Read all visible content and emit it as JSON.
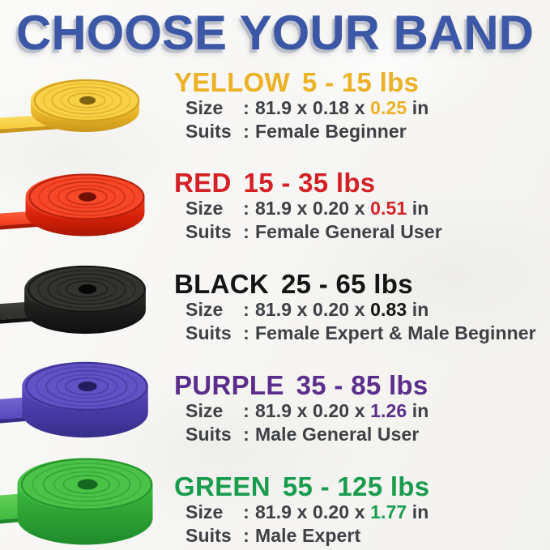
{
  "page": {
    "title": "CHOOSE YOUR BAND",
    "title_color": "#3B57A6",
    "background": "#F5F4F1",
    "text_color": "#3E4145"
  },
  "labels": {
    "size": "Size",
    "suits": "Suits",
    "colon": ":",
    "unit": "in"
  },
  "bands": [
    {
      "name": "YELLOW",
      "range": "5 - 15 lbs",
      "heading_color": "#ECB125",
      "size_prefix": "81.9 x 0.18 x",
      "thickness": "0.25",
      "thickness_color": "#ECB125",
      "suits": "Female Beginner",
      "photo_colors": {
        "light": "#FBDE6B",
        "main": "#F6CC37",
        "shade": "#E2AE25",
        "deep": "#C9961C",
        "hole": "#7E6410"
      }
    },
    {
      "name": "RED",
      "range": "15 - 35 lbs",
      "heading_color": "#D42127",
      "size_prefix": "81.9 x 0.20 x",
      "thickness": "0.51",
      "thickness_color": "#D42127",
      "suits": "Female General User",
      "photo_colors": {
        "light": "#FF6A45",
        "main": "#F23A1D",
        "shade": "#D21F07",
        "deep": "#A81806",
        "hole": "#701103"
      }
    },
    {
      "name": "BLACK",
      "range": "25 - 65 lbs",
      "heading_color": "#151515",
      "size_prefix": "81.9 x 0.20 x",
      "thickness": "0.83",
      "thickness_color": "#141414",
      "suits": "Female Expert & Male Beginner",
      "photo_colors": {
        "light": "#45443F",
        "main": "#2C2C2A",
        "shade": "#1A1A19",
        "deep": "#0F0F0F",
        "hole": "#060606"
      }
    },
    {
      "name": "PURPLE",
      "range": "35 - 85 lbs",
      "heading_color": "#5B2E8C",
      "size_prefix": "81.9 x 0.20 x",
      "thickness": "1.26",
      "thickness_color": "#5B2E8C",
      "suits": "Male General User",
      "photo_colors": {
        "light": "#7A6CD6",
        "main": "#5847BE",
        "shade": "#4638A2",
        "deep": "#382E89",
        "hole": "#241C5E"
      }
    },
    {
      "name": "GREEN",
      "range": "55 - 125 lbs",
      "heading_color": "#1A9C4F",
      "size_prefix": "81.9 x 0.20 x",
      "thickness": "1.77",
      "thickness_color": "#1A9C4F",
      "suits": "Male Expert",
      "photo_colors": {
        "light": "#6CD45E",
        "main": "#3DBC3F",
        "shade": "#2BA033",
        "deep": "#1F8A2B",
        "hole": "#156820"
      }
    }
  ]
}
